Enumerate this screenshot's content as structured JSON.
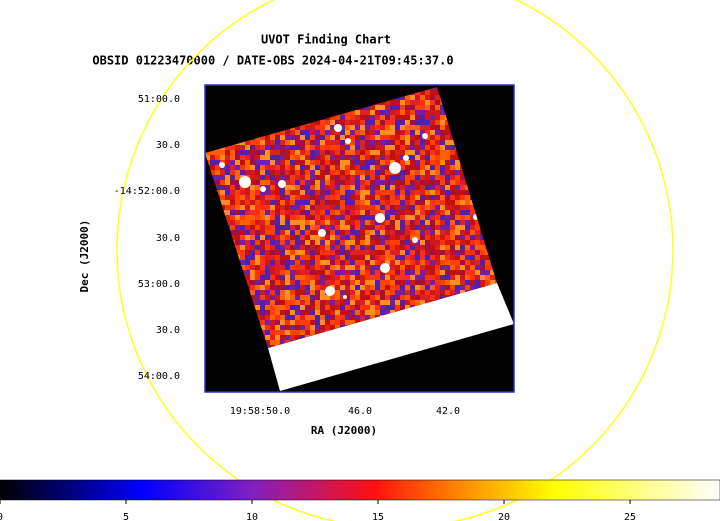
{
  "title": "UVOT Finding Chart",
  "subtitle": "OBSID 01223470000 / DATE-OBS 2024-04-21T09:45:37.0",
  "y_axis": {
    "label": "Dec (J2000)",
    "ticks": [
      "51:00.0",
      "30.0",
      "-14:52:00.0",
      "30.0",
      "53:00.0",
      "30.0",
      "54:00.0"
    ]
  },
  "x_axis": {
    "label": "RA (J2000)",
    "ticks": [
      "19:58:50.0",
      "46.0",
      "42.0"
    ]
  },
  "colorbar": {
    "lim": [
      0,
      28.57
    ],
    "ticks": [
      0,
      5,
      10,
      15,
      20,
      25
    ]
  }
}
